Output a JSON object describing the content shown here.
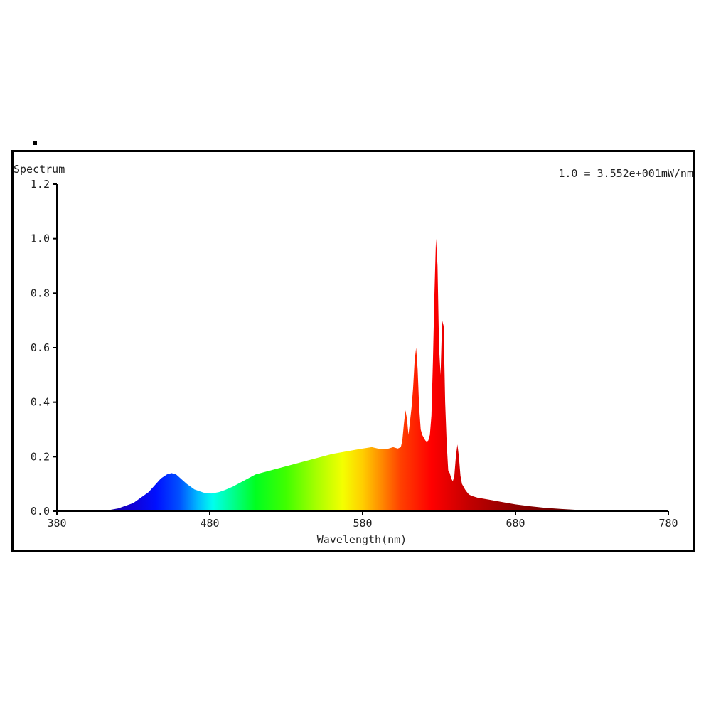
{
  "chart_data": {
    "type": "area",
    "title": "",
    "ylabel": "Spectrum",
    "xlabel": "Wavelength(nm)",
    "scale_note": "1.0 = 3.552e+001mW/nm",
    "xlim": [
      380,
      780
    ],
    "ylim": [
      0,
      1.2
    ],
    "xticks": [
      380,
      480,
      580,
      680,
      780
    ],
    "xtick_labels": [
      "380",
      "480",
      "580",
      "680",
      "780"
    ],
    "yticks": [
      0,
      0.2,
      0.4,
      0.6,
      0.8,
      1.0,
      1.2
    ],
    "ytick_labels": [
      "0.0",
      "0.2",
      "0.4",
      "0.6",
      "0.8",
      "1.0",
      "1.2"
    ],
    "grid": false,
    "fill": "wavelength-colored visible spectrum",
    "series": [
      {
        "x": [
          380,
          410,
          420,
          430,
          440,
          448,
          452,
          455,
          458,
          461,
          465,
          470,
          476,
          481,
          486,
          490,
          495,
          500,
          505,
          510,
          520,
          530,
          540,
          550,
          560,
          570,
          580,
          586,
          590,
          594,
          597,
          600,
          603,
          605,
          606,
          607,
          608,
          609,
          610,
          612,
          613,
          614,
          615,
          616,
          617,
          618,
          619,
          620,
          621,
          622,
          623,
          624,
          625,
          626,
          627,
          628,
          629,
          630,
          631,
          632,
          633,
          634,
          635,
          636,
          637,
          638,
          639,
          640,
          641,
          642,
          643,
          644,
          645,
          646,
          647,
          648,
          649,
          650,
          652,
          655,
          660,
          665,
          670,
          675,
          680,
          690,
          700,
          710,
          720,
          730,
          740,
          760,
          780
        ],
        "y": [
          0,
          0,
          0.01,
          0.03,
          0.07,
          0.12,
          0.135,
          0.14,
          0.135,
          0.12,
          0.1,
          0.08,
          0.068,
          0.065,
          0.07,
          0.078,
          0.09,
          0.105,
          0.12,
          0.135,
          0.15,
          0.165,
          0.18,
          0.195,
          0.21,
          0.22,
          0.23,
          0.235,
          0.23,
          0.228,
          0.23,
          0.235,
          0.23,
          0.235,
          0.26,
          0.32,
          0.37,
          0.34,
          0.28,
          0.38,
          0.45,
          0.55,
          0.6,
          0.52,
          0.38,
          0.3,
          0.28,
          0.27,
          0.26,
          0.255,
          0.26,
          0.28,
          0.35,
          0.55,
          0.8,
          1.0,
          0.9,
          0.6,
          0.5,
          0.7,
          0.68,
          0.4,
          0.25,
          0.15,
          0.14,
          0.12,
          0.11,
          0.13,
          0.2,
          0.245,
          0.2,
          0.13,
          0.1,
          0.09,
          0.08,
          0.072,
          0.065,
          0.06,
          0.055,
          0.05,
          0.045,
          0.04,
          0.035,
          0.03,
          0.025,
          0.018,
          0.012,
          0.008,
          0.005,
          0.003,
          0.001,
          0,
          0
        ]
      }
    ]
  }
}
